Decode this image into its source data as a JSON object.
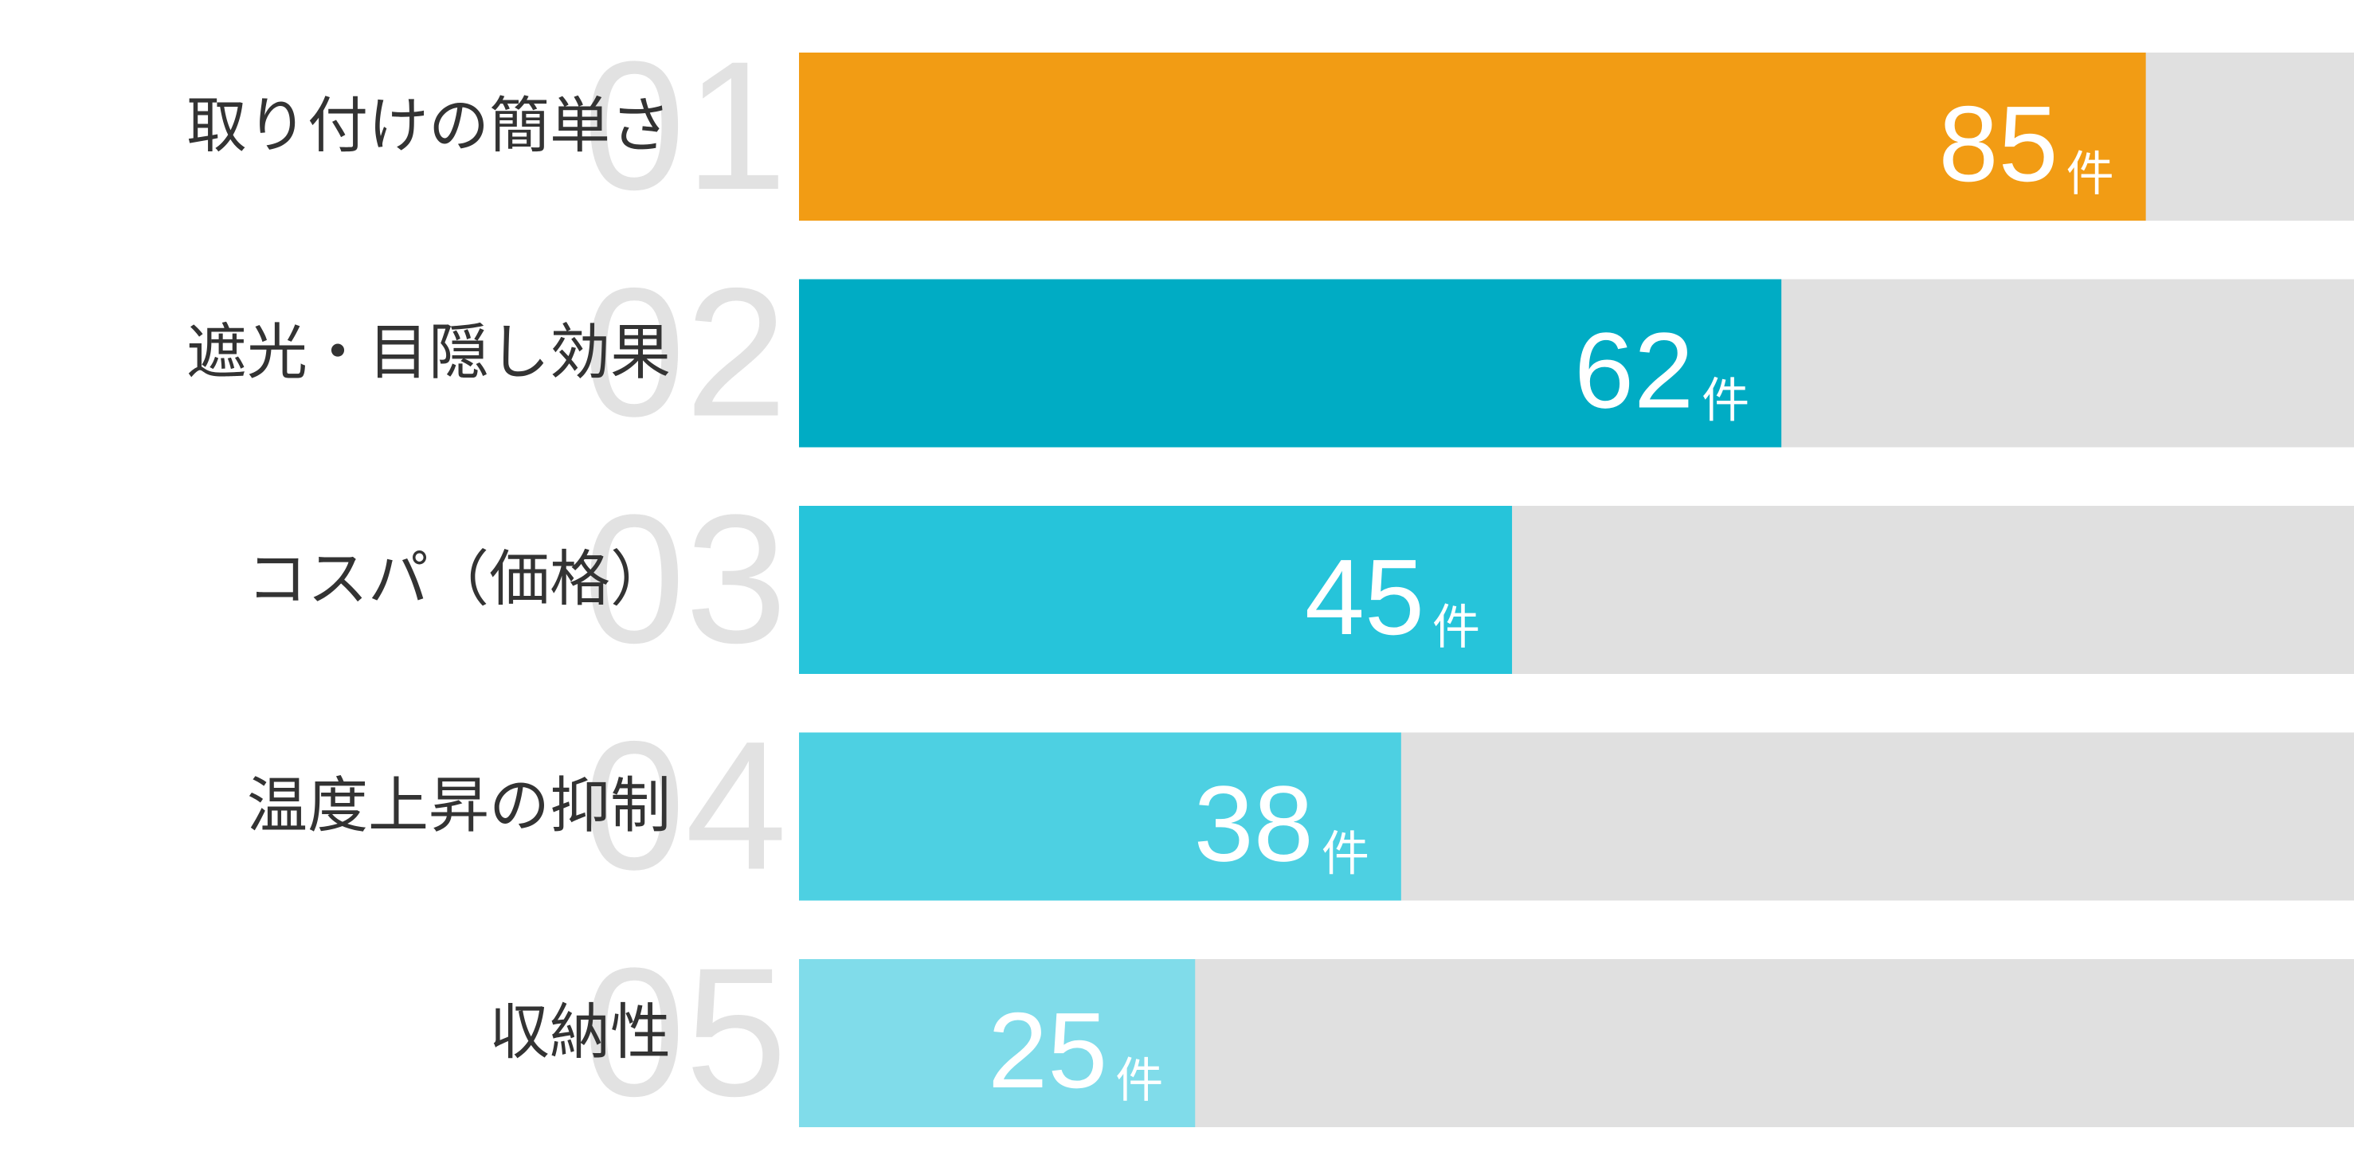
{
  "chart_data": {
    "type": "bar",
    "orientation": "horizontal",
    "categories": [
      "取り付けの簡単さ",
      "遮光・目隠し効果",
      "コスパ（価格）",
      "温度上昇の抑制",
      "収納性"
    ],
    "ranks": [
      "01",
      "02",
      "03",
      "04",
      "05"
    ],
    "values": [
      85,
      62,
      45,
      38,
      25
    ],
    "unit": "件",
    "colors": [
      "#f29c14",
      "#00acc4",
      "#26c4da",
      "#4dd0e2",
      "#80dcea"
    ],
    "track_color": "#e0e0e0",
    "xlim": [
      0,
      100
    ]
  }
}
